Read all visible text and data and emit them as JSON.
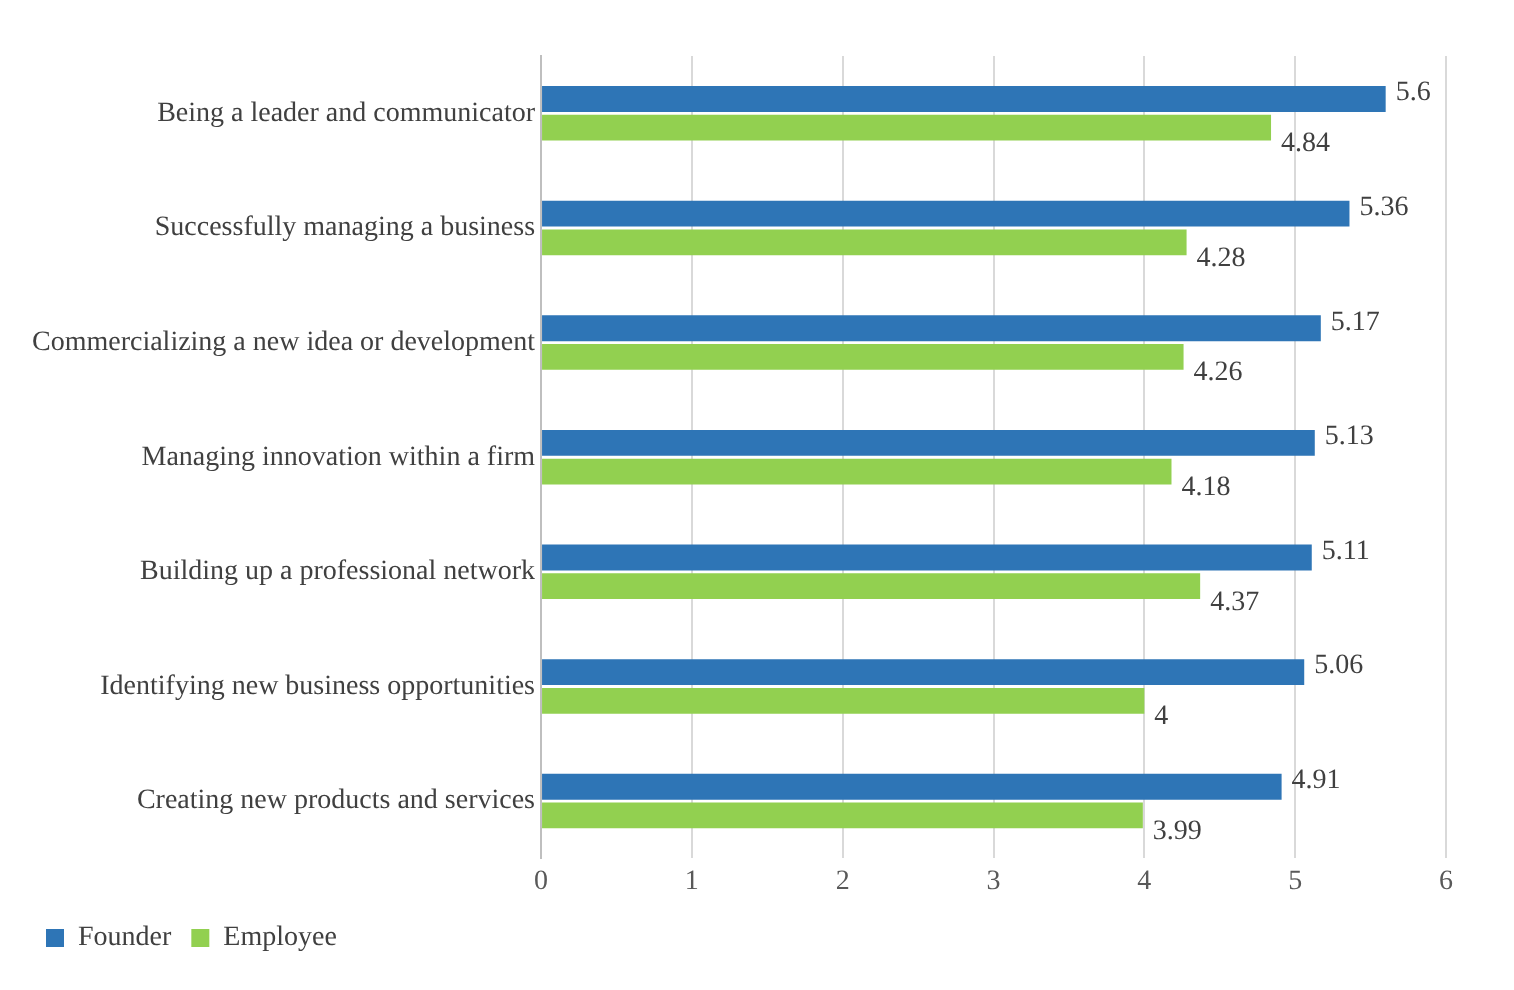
{
  "chart_data": {
    "type": "bar",
    "orientation": "horizontal",
    "categories": [
      "Being a leader and communicator",
      "Successfully managing a business",
      "Commercializing a new idea or development",
      "Managing innovation within a firm",
      "Building up a professional network",
      "Identifying new business opportunities",
      "Creating new products and services"
    ],
    "series": [
      {
        "name": "Founder",
        "color": "#2e75b6",
        "values": [
          5.6,
          5.36,
          5.17,
          5.13,
          5.11,
          5.06,
          4.91
        ]
      },
      {
        "name": "Employee",
        "color": "#92d050",
        "values": [
          4.84,
          4.28,
          4.26,
          4.18,
          4.37,
          4,
          3.99
        ]
      }
    ],
    "xlim": [
      0,
      6
    ],
    "xticks": [
      0,
      1,
      2,
      3,
      4,
      5,
      6
    ],
    "grid": "x",
    "legend": "bottom left",
    "data_labels": true
  }
}
